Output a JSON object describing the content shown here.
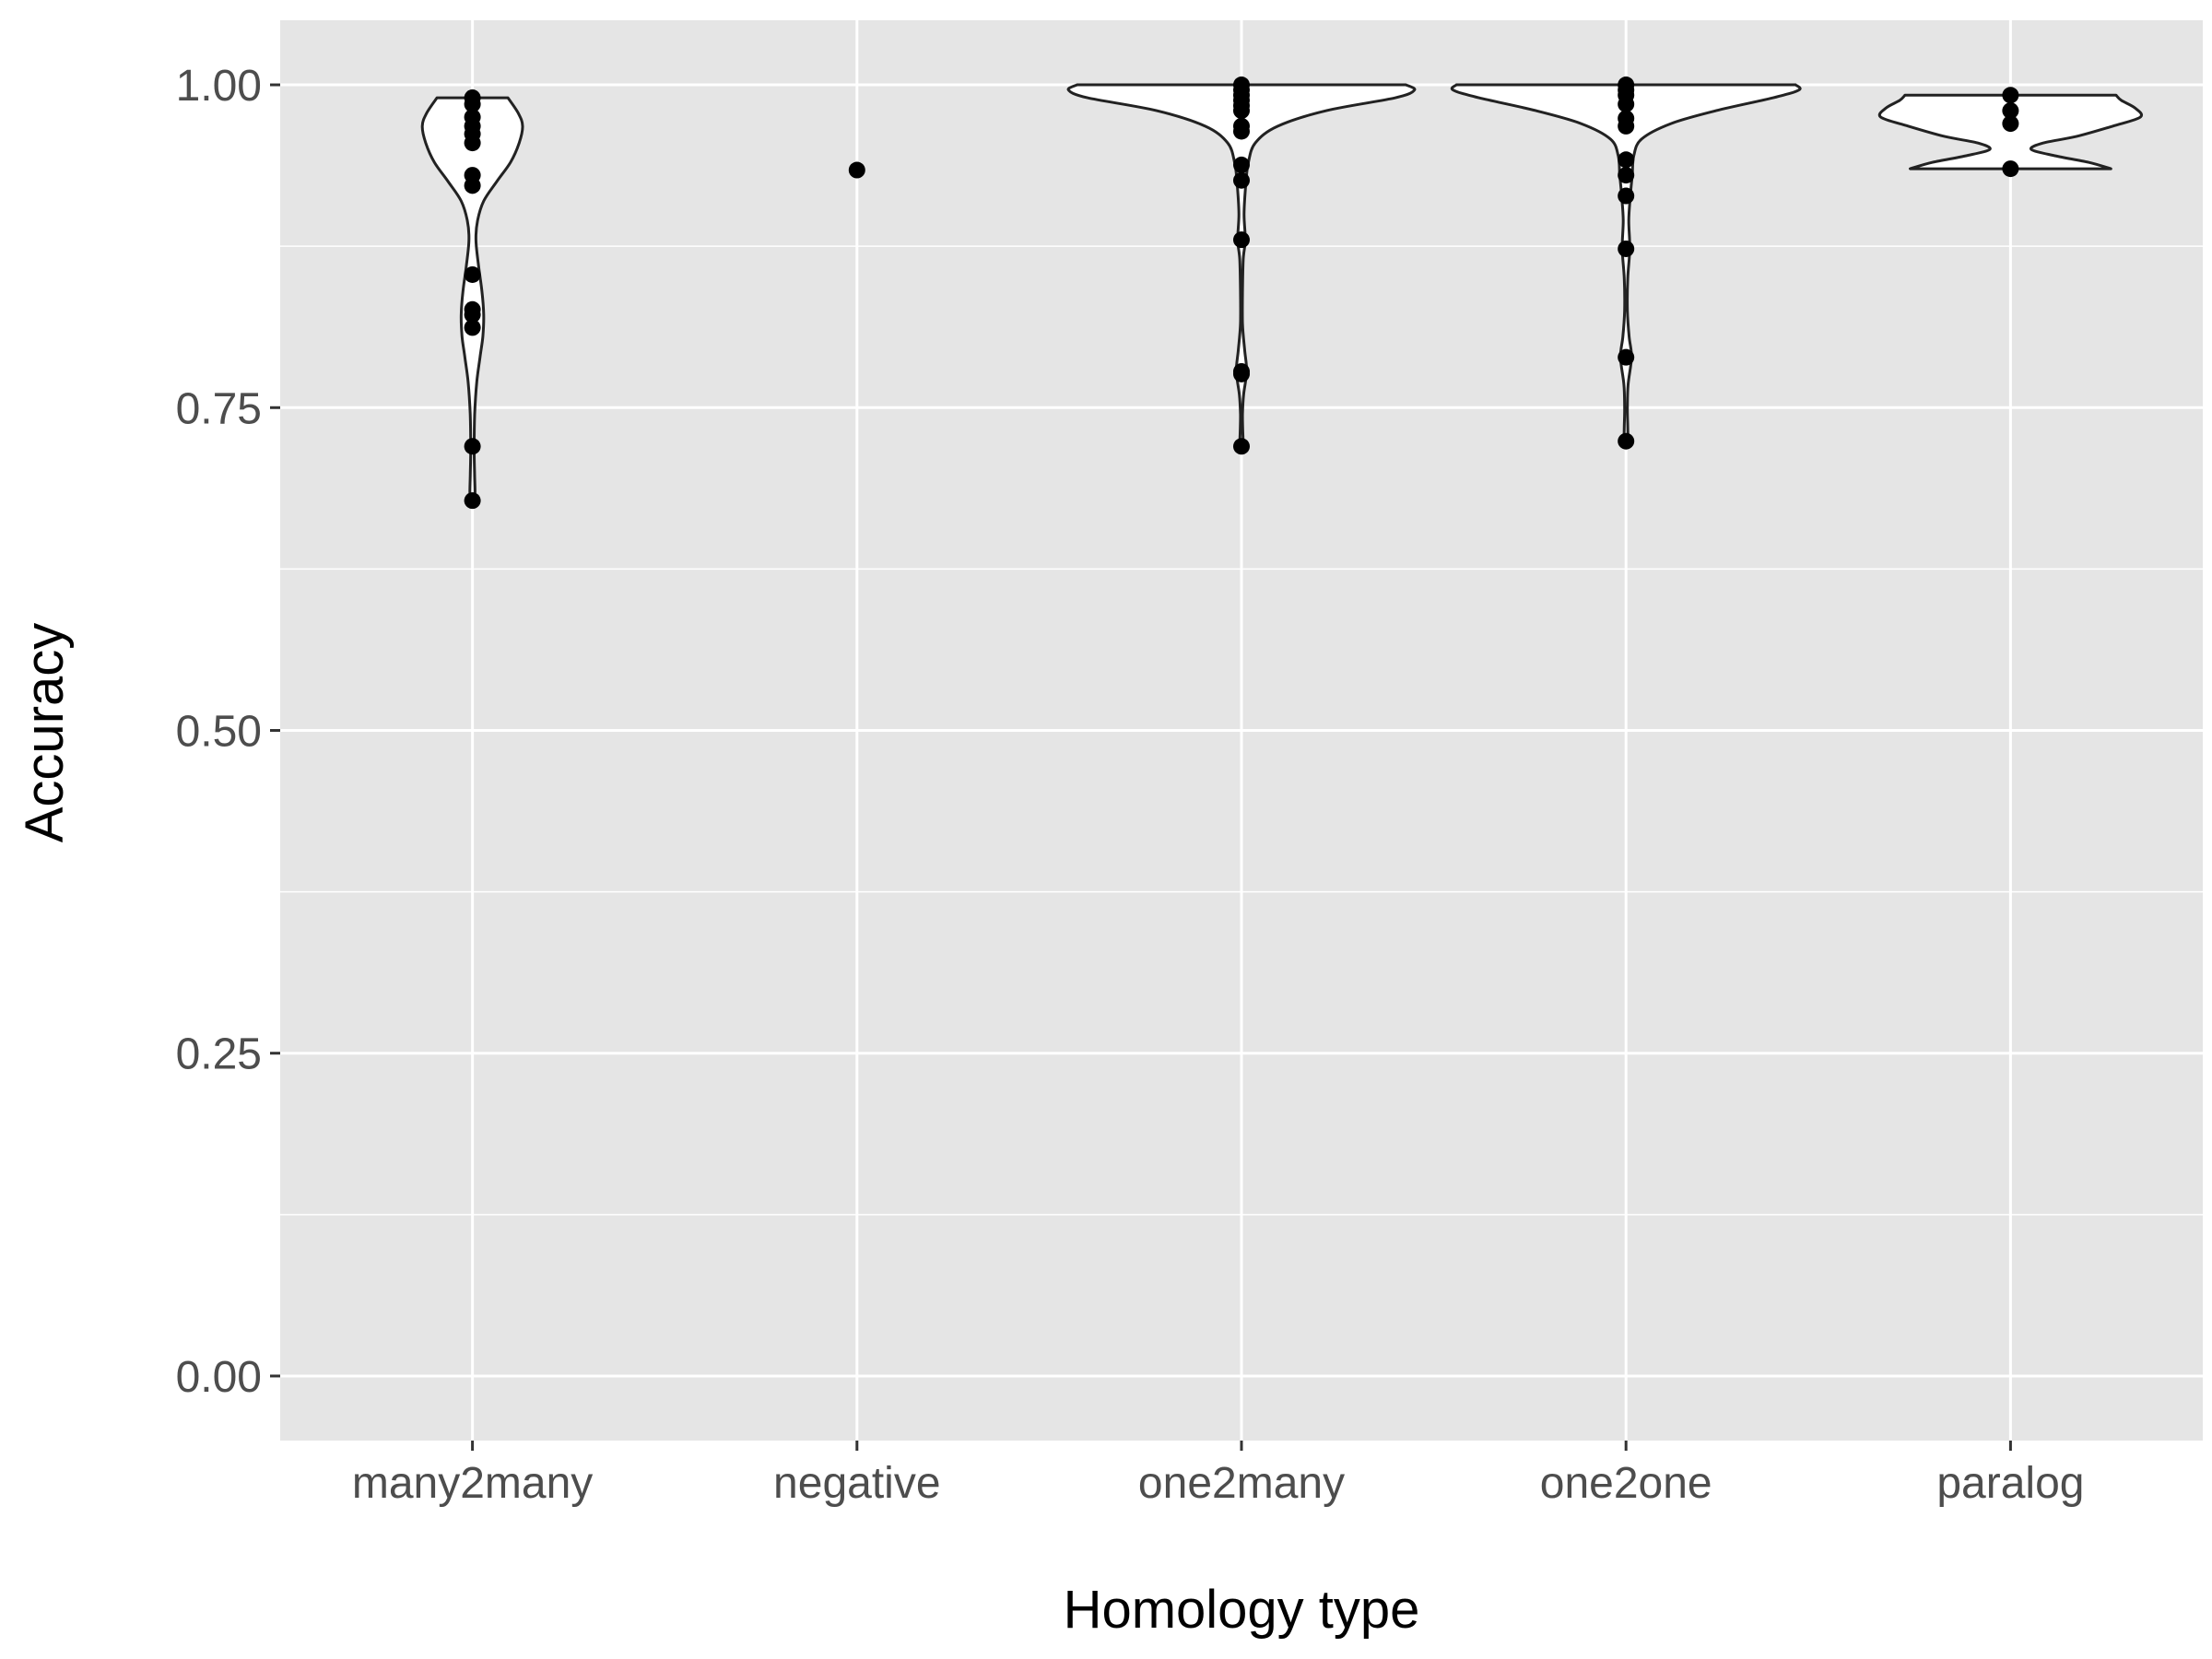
{
  "chart_data": {
    "type": "violin",
    "title": "",
    "xlabel": "Homology type",
    "ylabel": "Accuracy",
    "ylim": [
      -0.05,
      1.05
    ],
    "yticks": [
      0.0,
      0.25,
      0.5,
      0.75,
      1.0
    ],
    "ytick_labels": [
      "0.00",
      "0.25",
      "0.50",
      "0.75",
      "1.00"
    ],
    "grid": true,
    "legend": "none",
    "colors": {
      "panel_background": "#e5e5e5",
      "grid": "#ffffff",
      "violin_fill": "#ffffff",
      "violin_stroke": "#222222",
      "point": "#000000",
      "tick_text": "#4d4d4d"
    },
    "categories": [
      "many2many",
      "negative",
      "one2many",
      "one2one",
      "paralog"
    ],
    "groups": [
      {
        "category": "many2many",
        "points": [
          0.99,
          0.985,
          0.975,
          0.968,
          0.962,
          0.955,
          0.93,
          0.922,
          0.853,
          0.826,
          0.822,
          0.812,
          0.72,
          0.678
        ],
        "violin_range": [
          0.678,
          0.99
        ],
        "violin_density": [
          [
            0.678,
            0.012
          ],
          [
            0.685,
            0.015
          ],
          [
            0.7,
            0.012
          ],
          [
            0.72,
            0.01
          ],
          [
            0.745,
            0.013
          ],
          [
            0.77,
            0.025
          ],
          [
            0.79,
            0.045
          ],
          [
            0.805,
            0.06
          ],
          [
            0.822,
            0.065
          ],
          [
            0.84,
            0.055
          ],
          [
            0.86,
            0.035
          ],
          [
            0.88,
            0.02
          ],
          [
            0.895,
            0.03
          ],
          [
            0.91,
            0.065
          ],
          [
            0.925,
            0.14
          ],
          [
            0.94,
            0.22
          ],
          [
            0.955,
            0.27
          ],
          [
            0.968,
            0.29
          ],
          [
            0.978,
            0.265
          ],
          [
            0.99,
            0.205
          ]
        ]
      },
      {
        "category": "negative",
        "points": [
          0.934
        ],
        "violin_range": null,
        "violin_density": []
      },
      {
        "category": "one2many",
        "points": [
          1.0,
          0.996,
          0.992,
          0.988,
          0.984,
          0.98,
          0.968,
          0.964,
          0.938,
          0.926,
          0.88,
          0.778,
          0.776,
          0.72
        ],
        "violin_range": [
          0.72,
          1.0
        ],
        "violin_density": [
          [
            0.72,
            0.012
          ],
          [
            0.73,
            0.008
          ],
          [
            0.745,
            0.006
          ],
          [
            0.76,
            0.012
          ],
          [
            0.778,
            0.03
          ],
          [
            0.795,
            0.018
          ],
          [
            0.815,
            0.006
          ],
          [
            0.84,
            0.006
          ],
          [
            0.865,
            0.01
          ],
          [
            0.88,
            0.022
          ],
          [
            0.9,
            0.015
          ],
          [
            0.925,
            0.026
          ],
          [
            0.94,
            0.04
          ],
          [
            0.955,
            0.08
          ],
          [
            0.968,
            0.21
          ],
          [
            0.98,
            0.49
          ],
          [
            0.99,
            0.89
          ],
          [
            0.996,
            1.0
          ],
          [
            1.0,
            0.95
          ]
        ]
      },
      {
        "category": "one2one",
        "points": [
          1.0,
          0.996,
          0.992,
          0.985,
          0.974,
          0.968,
          0.942,
          0.93,
          0.914,
          0.873,
          0.789,
          0.724
        ],
        "violin_range": [
          0.724,
          1.0
        ],
        "violin_density": [
          [
            0.724,
            0.012
          ],
          [
            0.735,
            0.01
          ],
          [
            0.75,
            0.008
          ],
          [
            0.768,
            0.012
          ],
          [
            0.789,
            0.032
          ],
          [
            0.805,
            0.018
          ],
          [
            0.825,
            0.008
          ],
          [
            0.85,
            0.01
          ],
          [
            0.873,
            0.022
          ],
          [
            0.895,
            0.016
          ],
          [
            0.914,
            0.025
          ],
          [
            0.93,
            0.036
          ],
          [
            0.945,
            0.045
          ],
          [
            0.958,
            0.09
          ],
          [
            0.97,
            0.26
          ],
          [
            0.98,
            0.52
          ],
          [
            0.99,
            0.85
          ],
          [
            0.996,
            1.0
          ],
          [
            1.0,
            0.98
          ]
        ]
      },
      {
        "category": "paralog",
        "points": [
          0.992,
          0.98,
          0.97,
          0.935
        ],
        "violin_range": [
          0.935,
          0.992
        ],
        "violin_density": [
          [
            0.935,
            0.58
          ],
          [
            0.94,
            0.45
          ],
          [
            0.945,
            0.26
          ],
          [
            0.95,
            0.12
          ],
          [
            0.955,
            0.19
          ],
          [
            0.96,
            0.38
          ],
          [
            0.968,
            0.59
          ],
          [
            0.975,
            0.75
          ],
          [
            0.982,
            0.72
          ],
          [
            0.988,
            0.64
          ],
          [
            0.992,
            0.61
          ]
        ]
      }
    ]
  }
}
